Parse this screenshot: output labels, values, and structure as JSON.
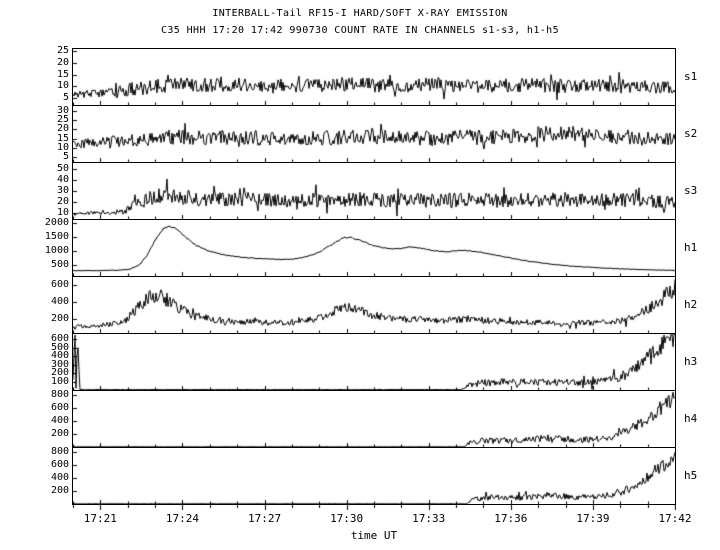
{
  "header": {
    "title": "INTERBALL-Tail RF15-I HARD/SOFT X-RAY EMISSION",
    "subtitle": "C35 HHH 17:20 17:42 990730  COUNT RATE IN CHANNELS s1-s3, h1-h5"
  },
  "axes": {
    "xlabel": "time UT",
    "x_min": 20,
    "x_max": 42,
    "x_tick_minutes": [
      21,
      24,
      27,
      30,
      33,
      36,
      39,
      42
    ],
    "x_tick_labels": [
      "17:21",
      "17:24",
      "17:27",
      "17:30",
      "17:33",
      "17:36",
      "17:39",
      "17:42"
    ]
  },
  "colors": {
    "line": "#000000",
    "background": "#ffffff"
  },
  "chart_data": [
    {
      "type": "line",
      "name": "s1",
      "ylim": [
        2,
        26
      ],
      "yticks": [
        5,
        10,
        15,
        20,
        25
      ],
      "seed": 1,
      "points": [
        [
          20,
          6.5,
          1.3
        ],
        [
          21,
          7,
          2
        ],
        [
          21.6,
          7.5,
          2.6
        ],
        [
          22,
          8.5,
          3
        ],
        [
          23,
          10,
          3
        ],
        [
          24,
          11,
          3
        ],
        [
          25,
          10.5,
          3
        ],
        [
          26,
          11,
          3
        ],
        [
          27,
          10.5,
          3
        ],
        [
          28,
          10.5,
          3
        ],
        [
          29,
          10,
          3
        ],
        [
          30,
          11,
          3
        ],
        [
          31,
          10.5,
          3
        ],
        [
          32,
          10,
          3
        ],
        [
          33,
          11,
          3
        ],
        [
          34,
          10.5,
          3
        ],
        [
          35,
          10,
          3
        ],
        [
          36,
          10.5,
          3
        ],
        [
          37,
          10.5,
          3
        ],
        [
          38,
          10,
          3
        ],
        [
          39,
          10,
          3
        ],
        [
          40,
          10,
          3
        ],
        [
          41,
          9.5,
          3
        ],
        [
          42,
          9,
          3
        ]
      ]
    },
    {
      "type": "line",
      "name": "s2",
      "ylim": [
        2,
        33
      ],
      "yticks": [
        5,
        10,
        15,
        20,
        25,
        30
      ],
      "seed": 2,
      "points": [
        [
          20,
          12,
          2.2
        ],
        [
          21,
          12.5,
          3
        ],
        [
          22,
          13.5,
          4
        ],
        [
          23,
          15,
          4.2
        ],
        [
          24,
          16,
          4.2
        ],
        [
          25,
          15,
          4.2
        ],
        [
          26,
          16,
          4.2
        ],
        [
          27,
          15,
          4.2
        ],
        [
          28,
          16,
          4.2
        ],
        [
          29,
          15,
          4.2
        ],
        [
          30,
          16,
          4.2
        ],
        [
          31,
          15.5,
          4.2
        ],
        [
          32,
          16,
          4.2
        ],
        [
          33,
          15,
          4.2
        ],
        [
          34,
          16,
          4.2
        ],
        [
          35,
          15.5,
          4.2
        ],
        [
          36,
          16,
          4.2
        ],
        [
          37,
          17.5,
          4.5
        ],
        [
          38,
          18,
          4.5
        ],
        [
          39,
          17,
          4.2
        ],
        [
          40,
          16,
          4.2
        ],
        [
          41,
          15,
          4.2
        ],
        [
          42,
          14.5,
          4
        ]
      ]
    },
    {
      "type": "line",
      "name": "s3",
      "ylim": [
        5,
        55
      ],
      "yticks": [
        10,
        20,
        30,
        40,
        50
      ],
      "seed": 3,
      "points": [
        [
          20,
          10,
          1.3
        ],
        [
          21.4,
          10.5,
          1.6
        ],
        [
          21.9,
          12,
          3
        ],
        [
          22.3,
          18,
          5
        ],
        [
          22.8,
          23,
          7
        ],
        [
          23.2,
          26,
          7
        ],
        [
          23.8,
          25,
          7
        ],
        [
          24.5,
          23,
          6.5
        ],
        [
          25.5,
          22,
          6.5
        ],
        [
          26.5,
          23,
          6.5
        ],
        [
          27.5,
          21.5,
          6.5
        ],
        [
          28.5,
          22,
          6.5
        ],
        [
          29.5,
          21.5,
          6.5
        ],
        [
          30.5,
          23,
          6.5
        ],
        [
          31.5,
          21.5,
          6.5
        ],
        [
          32.5,
          22,
          6.5
        ],
        [
          33.5,
          21.5,
          6.5
        ],
        [
          34.5,
          22,
          6.5
        ],
        [
          35.5,
          21.5,
          6.5
        ],
        [
          36.5,
          22,
          6.5
        ],
        [
          37.5,
          22.5,
          6.5
        ],
        [
          38.5,
          22,
          6.5
        ],
        [
          39.5,
          21.5,
          6.5
        ],
        [
          40.5,
          22,
          6.5
        ],
        [
          41.5,
          21,
          6.5
        ],
        [
          42,
          20.5,
          6.5
        ]
      ]
    },
    {
      "type": "line",
      "name": "h1",
      "ylim": [
        100,
        2100
      ],
      "yticks": [
        500,
        1000,
        1500,
        2000
      ],
      "seed": 4,
      "points": [
        [
          20,
          290,
          8
        ],
        [
          21,
          295,
          8
        ],
        [
          21.6,
          305,
          10
        ],
        [
          22,
          330,
          12
        ],
        [
          22.4,
          470,
          15
        ],
        [
          22.7,
          830,
          20
        ],
        [
          23,
          1380,
          25
        ],
        [
          23.3,
          1790,
          25
        ],
        [
          23.5,
          1895,
          25
        ],
        [
          23.8,
          1780,
          25
        ],
        [
          24.1,
          1500,
          22
        ],
        [
          24.5,
          1190,
          20
        ],
        [
          25,
          980,
          18
        ],
        [
          25.5,
          860,
          16
        ],
        [
          26,
          790,
          15
        ],
        [
          26.5,
          745,
          13
        ],
        [
          27,
          715,
          12
        ],
        [
          27.5,
          690,
          12
        ],
        [
          28,
          700,
          12
        ],
        [
          28.5,
          780,
          14
        ],
        [
          29,
          950,
          17
        ],
        [
          29.5,
          1250,
          20
        ],
        [
          29.9,
          1480,
          20
        ],
        [
          30.2,
          1465,
          20
        ],
        [
          30.6,
          1330,
          20
        ],
        [
          31,
          1180,
          18
        ],
        [
          31.5,
          1080,
          16
        ],
        [
          32,
          1080,
          16
        ],
        [
          32.3,
          1140,
          16
        ],
        [
          32.7,
          1095,
          16
        ],
        [
          33.2,
          1000,
          15
        ],
        [
          33.7,
          960,
          15
        ],
        [
          34.1,
          1010,
          15
        ],
        [
          34.5,
          1000,
          15
        ],
        [
          35,
          930,
          15
        ],
        [
          35.5,
          840,
          14
        ],
        [
          36,
          740,
          14
        ],
        [
          36.5,
          650,
          13
        ],
        [
          37,
          580,
          12
        ],
        [
          37.5,
          520,
          12
        ],
        [
          38,
          470,
          11
        ],
        [
          38.5,
          435,
          10
        ],
        [
          39,
          405,
          10
        ],
        [
          39.5,
          378,
          9
        ],
        [
          40,
          355,
          9
        ],
        [
          40.5,
          338,
          9
        ],
        [
          41,
          322,
          8
        ],
        [
          41.5,
          310,
          8
        ],
        [
          42,
          300,
          8
        ]
      ]
    },
    {
      "type": "line",
      "name": "h2",
      "ylim": [
        30,
        700
      ],
      "yticks": [
        200,
        400,
        600
      ],
      "seed": 5,
      "points": [
        [
          20,
          110,
          22
        ],
        [
          21,
          120,
          27
        ],
        [
          21.8,
          150,
          35
        ],
        [
          22.3,
          300,
          70
        ],
        [
          22.8,
          460,
          90
        ],
        [
          23.2,
          465,
          90
        ],
        [
          23.6,
          380,
          75
        ],
        [
          24,
          300,
          62
        ],
        [
          24.5,
          232,
          52
        ],
        [
          25,
          196,
          45
        ],
        [
          25.5,
          176,
          41
        ],
        [
          26,
          166,
          38
        ],
        [
          26.5,
          158,
          37
        ],
        [
          27,
          152,
          35
        ],
        [
          27.5,
          152,
          35
        ],
        [
          28,
          158,
          36
        ],
        [
          28.5,
          170,
          39
        ],
        [
          29,
          212,
          45
        ],
        [
          29.5,
          292,
          55
        ],
        [
          29.9,
          345,
          60
        ],
        [
          30.3,
          330,
          58
        ],
        [
          30.7,
          276,
          51
        ],
        [
          31,
          240,
          47
        ],
        [
          31.5,
          210,
          43
        ],
        [
          32,
          198,
          41
        ],
        [
          32.5,
          192,
          40
        ],
        [
          33,
          186,
          39
        ],
        [
          33.5,
          181,
          38
        ],
        [
          34,
          188,
          40
        ],
        [
          34.4,
          196,
          41
        ],
        [
          34.8,
          188,
          40
        ],
        [
          35.2,
          178,
          38
        ],
        [
          35.7,
          168,
          37
        ],
        [
          36.2,
          161,
          36
        ],
        [
          36.7,
          156,
          35
        ],
        [
          37.2,
          152,
          34
        ],
        [
          37.7,
          150,
          34
        ],
        [
          38.2,
          150,
          34
        ],
        [
          38.7,
          152,
          34
        ],
        [
          39.2,
          157,
          35
        ],
        [
          39.7,
          166,
          37
        ],
        [
          40.2,
          196,
          43
        ],
        [
          40.7,
          262,
          55
        ],
        [
          41.2,
          362,
          72
        ],
        [
          41.6,
          470,
          86
        ],
        [
          42,
          560,
          95
        ]
      ]
    },
    {
      "type": "line",
      "name": "h3",
      "ylim": [
        0,
        660
      ],
      "yticks": [
        100,
        200,
        300,
        400,
        500,
        600
      ],
      "seed": 6,
      "points": [
        [
          20,
          330,
          330
        ],
        [
          20.18,
          330,
          330
        ],
        [
          20.25,
          4,
          2
        ],
        [
          34.2,
          4,
          2
        ],
        [
          34.5,
          62,
          36
        ],
        [
          35,
          92,
          46
        ],
        [
          35.5,
          96,
          46
        ],
        [
          36,
          92,
          44
        ],
        [
          36.5,
          90,
          43
        ],
        [
          37,
          89,
          42
        ],
        [
          37.5,
          88,
          42
        ],
        [
          38,
          92,
          43
        ],
        [
          38.5,
          96,
          44
        ],
        [
          39,
          104,
          46
        ],
        [
          39.5,
          118,
          50
        ],
        [
          40,
          150,
          57
        ],
        [
          40.4,
          215,
          68
        ],
        [
          40.8,
          320,
          84
        ],
        [
          41.2,
          440,
          96
        ],
        [
          41.6,
          555,
          104
        ],
        [
          42,
          625,
          108
        ]
      ]
    },
    {
      "type": "line",
      "name": "h4",
      "ylim": [
        0,
        860
      ],
      "yticks": [
        200,
        400,
        600,
        800
      ],
      "seed": 7,
      "points": [
        [
          20,
          3,
          1.5
        ],
        [
          34.3,
          3,
          1.5
        ],
        [
          34.5,
          70,
          38
        ],
        [
          35,
          100,
          48
        ],
        [
          35.5,
          96,
          45
        ],
        [
          36,
          98,
          46
        ],
        [
          36.5,
          108,
          48
        ],
        [
          37,
          126,
          52
        ],
        [
          37.5,
          146,
          56
        ],
        [
          38,
          122,
          50
        ],
        [
          38.5,
          108,
          47
        ],
        [
          39,
          118,
          48
        ],
        [
          39.5,
          136,
          52
        ],
        [
          40,
          192,
          62
        ],
        [
          40.5,
          300,
          80
        ],
        [
          41,
          445,
          96
        ],
        [
          41.5,
          605,
          110
        ],
        [
          42,
          745,
          120
        ]
      ]
    },
    {
      "type": "line",
      "name": "h5",
      "ylim": [
        0,
        860
      ],
      "yticks": [
        200,
        400,
        600,
        800
      ],
      "seed": 8,
      "points": [
        [
          20,
          3,
          1.5
        ],
        [
          34.4,
          3,
          1.5
        ],
        [
          34.6,
          66,
          36
        ],
        [
          35,
          95,
          45
        ],
        [
          35.5,
          100,
          46
        ],
        [
          36,
          96,
          44
        ],
        [
          36.5,
          101,
          46
        ],
        [
          37,
          116,
          50
        ],
        [
          37.5,
          136,
          54
        ],
        [
          38,
          116,
          48
        ],
        [
          38.5,
          106,
          45
        ],
        [
          39,
          116,
          48
        ],
        [
          39.5,
          131,
          50
        ],
        [
          40,
          182,
          60
        ],
        [
          40.5,
          282,
          78
        ],
        [
          41,
          425,
          92
        ],
        [
          41.5,
          565,
          105
        ],
        [
          42,
          700,
          115
        ]
      ]
    }
  ]
}
